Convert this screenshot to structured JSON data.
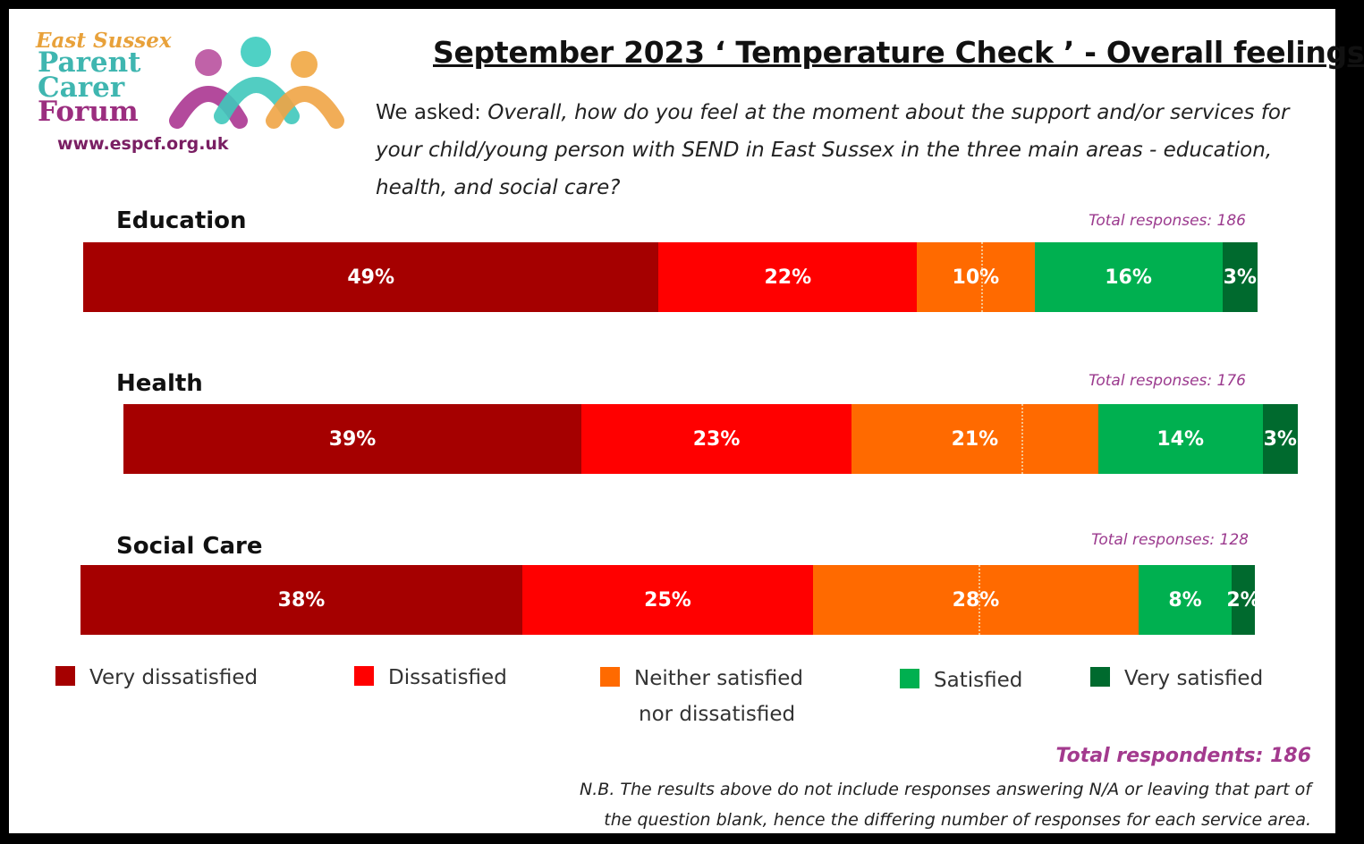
{
  "logo": {
    "line1": "East Sussex",
    "line2": "Parent",
    "line3": "Carer",
    "line4": "Forum",
    "url": "www.espcf.org.uk"
  },
  "title": "September 2023  ‘ Temperature Check ’ -  Overall feelings",
  "question": {
    "prefix": "We asked: ",
    "text": "Overall, how do you feel at the moment about the support and/or services for your child/young person with SEND in East Sussex in the three main areas - education, health, and social care?"
  },
  "colors": {
    "very_dissatisfied": "#a50000",
    "dissatisfied": "#ff0000",
    "neither": "#ff6a00",
    "satisfied": "#00b050",
    "very_satisfied": "#006a2e"
  },
  "chart_data": {
    "type": "bar",
    "orientation": "horizontal",
    "stacked": true,
    "categories": [
      "Education",
      "Health",
      "Social Care"
    ],
    "totals": [
      "Total responses: 186",
      "Total responses: 176",
      "Total responses: 128"
    ],
    "series": [
      {
        "name": "Very dissatisfied",
        "values": [
          49,
          39,
          38
        ],
        "labels": [
          "49%",
          "39%",
          "38%"
        ]
      },
      {
        "name": "Dissatisfied",
        "values": [
          22,
          23,
          25
        ],
        "labels": [
          "22%",
          "23%",
          "25%"
        ]
      },
      {
        "name": "Neither satisfied nor dissatisfied",
        "values": [
          10,
          21,
          28
        ],
        "labels": [
          "10%",
          "21%",
          "28%"
        ]
      },
      {
        "name": "Satisfied",
        "values": [
          16,
          14,
          8
        ],
        "labels": [
          "16%",
          "14%",
          "8%"
        ]
      },
      {
        "name": "Very satisfied",
        "values": [
          3,
          3,
          2
        ],
        "labels": [
          "3%",
          "3%",
          "2%"
        ]
      }
    ]
  },
  "legend": [
    {
      "line1": "Very dissatisfied",
      "line2": ""
    },
    {
      "line1": "Dissatisfied",
      "line2": ""
    },
    {
      "line1": "Neither satisfied",
      "line2": "nor dissatisfied"
    },
    {
      "line1": "Satisfied",
      "line2": ""
    },
    {
      "line1": "Very satisfied",
      "line2": ""
    }
  ],
  "footer": {
    "total_respondents": "Total respondents: 186",
    "note": "N.B. The results above do not include  responses answering N/A or leaving that part of the question blank, hence the differing number of responses for each service area."
  }
}
